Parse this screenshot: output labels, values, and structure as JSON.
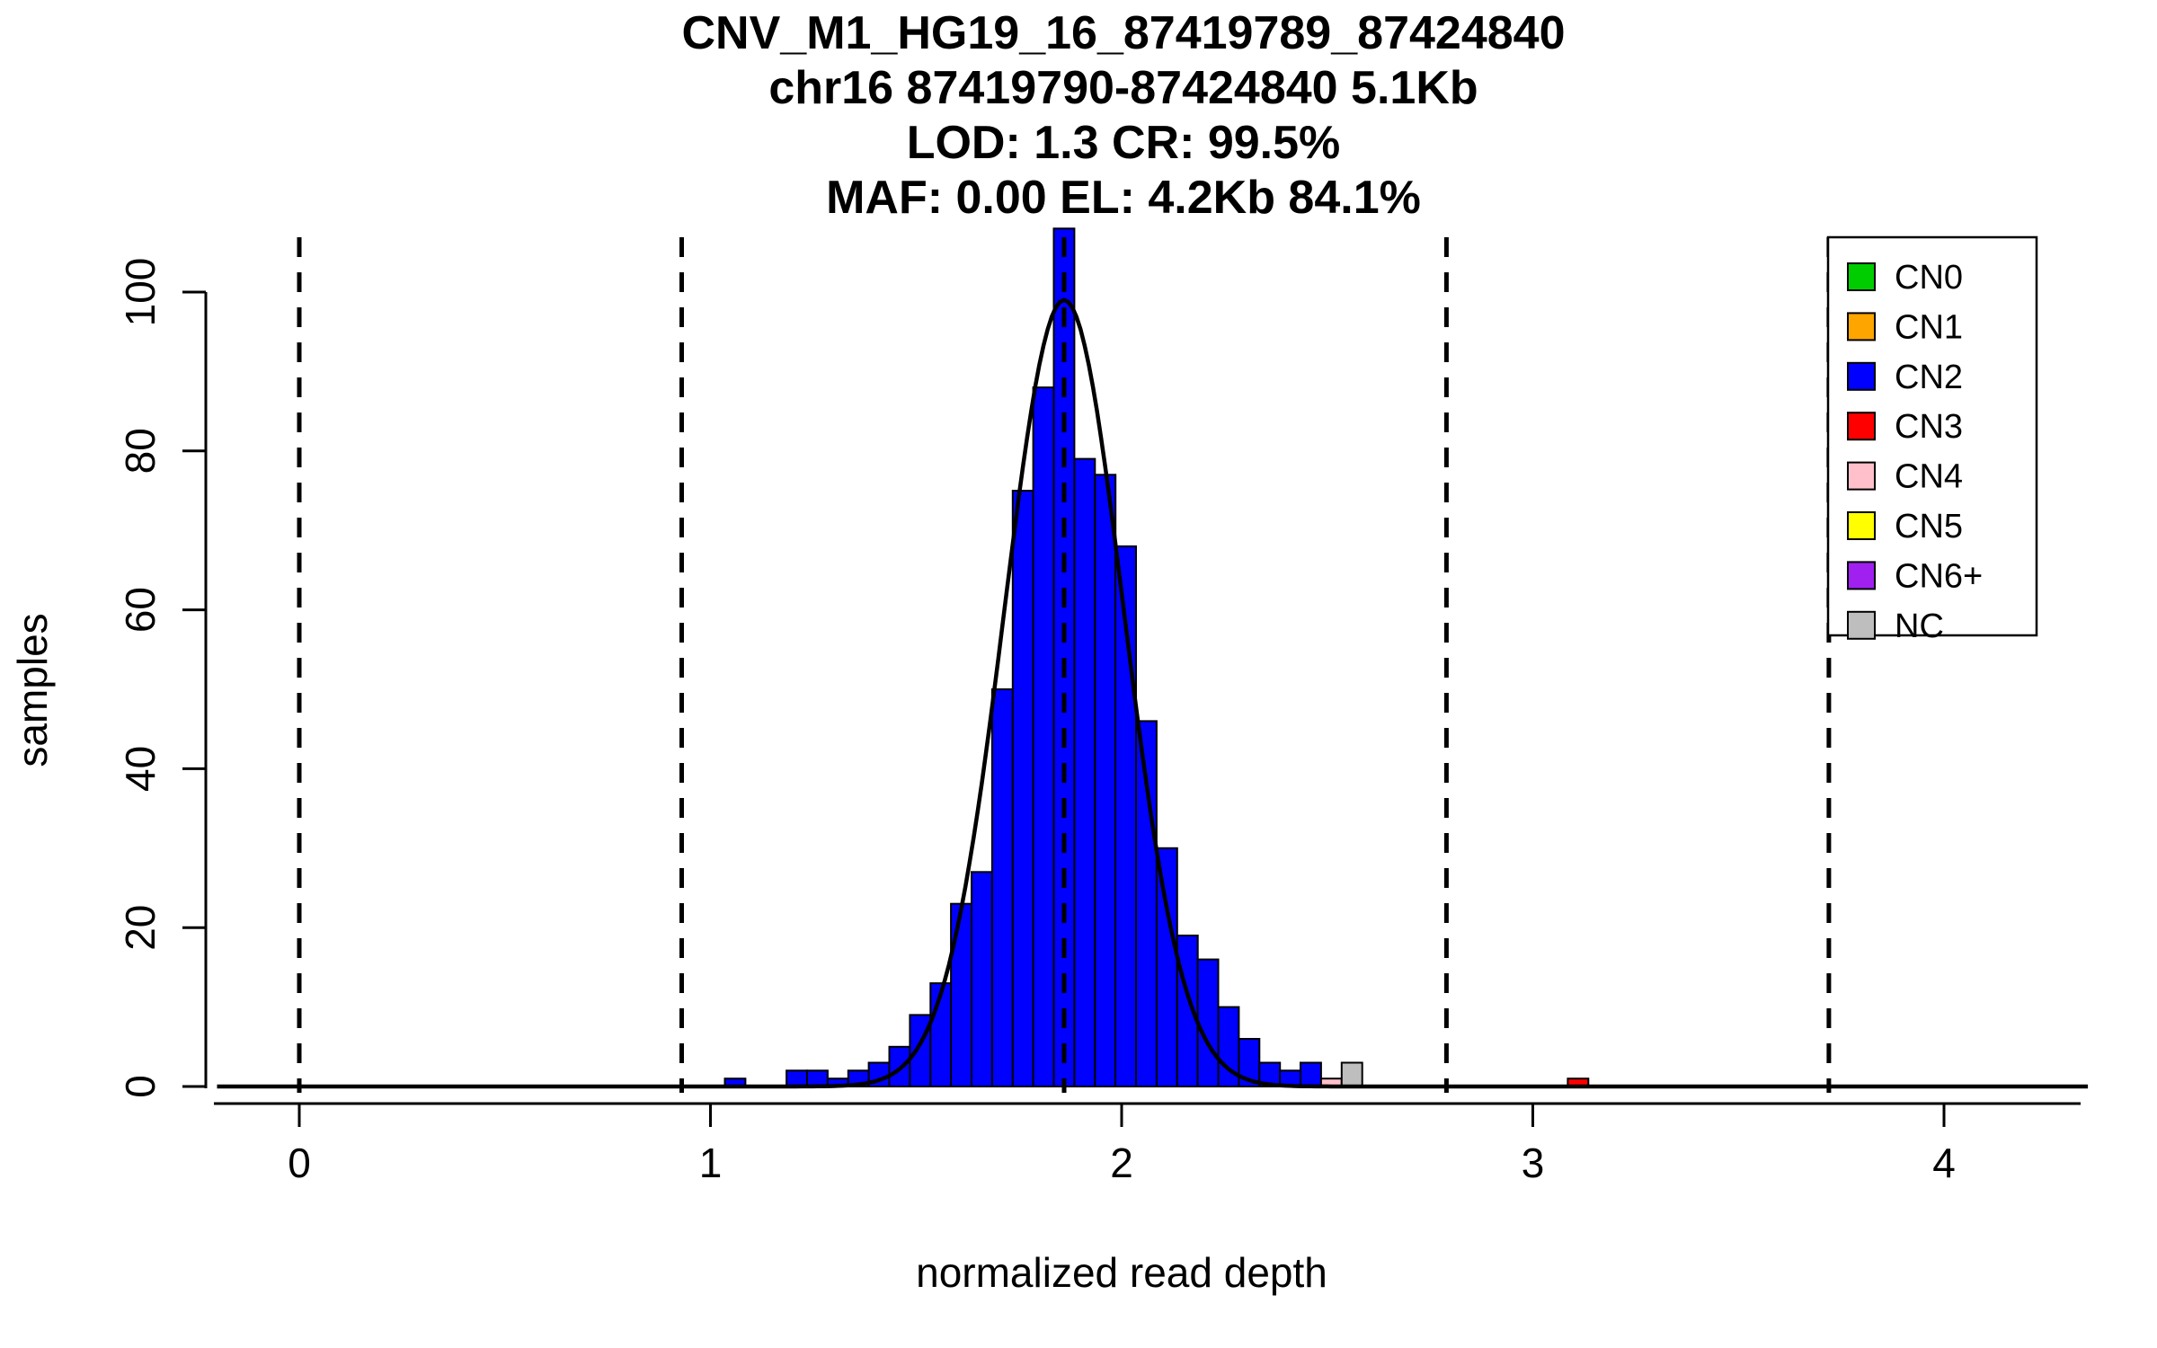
{
  "chart_data": {
    "type": "bar",
    "title_lines": [
      "CNV_M1_HG19_16_87419789_87424840",
      "chr16 87419790-87424840 5.1Kb",
      "LOD: 1.3 CR: 99.5%",
      "MAF: 0.00 EL: 4.2Kb 84.1%"
    ],
    "xlabel": "normalized read depth",
    "ylabel": "samples",
    "x_ticks": [
      0,
      1,
      2,
      3,
      4
    ],
    "y_ticks": [
      0,
      20,
      40,
      60,
      80,
      100
    ],
    "xlim": [
      -0.2,
      4.35
    ],
    "ylim": [
      0,
      108
    ],
    "grid": false,
    "legend_position": "top-right",
    "bin_width": 0.05,
    "bars": [
      {
        "x": 1.035,
        "h": 1,
        "cn": "CN2"
      },
      {
        "x": 1.185,
        "h": 2,
        "cn": "CN2"
      },
      {
        "x": 1.235,
        "h": 2,
        "cn": "CN2"
      },
      {
        "x": 1.285,
        "h": 1,
        "cn": "CN2"
      },
      {
        "x": 1.335,
        "h": 2,
        "cn": "CN2"
      },
      {
        "x": 1.385,
        "h": 3,
        "cn": "CN2"
      },
      {
        "x": 1.435,
        "h": 5,
        "cn": "CN2"
      },
      {
        "x": 1.485,
        "h": 9,
        "cn": "CN2"
      },
      {
        "x": 1.535,
        "h": 13,
        "cn": "CN2"
      },
      {
        "x": 1.585,
        "h": 23,
        "cn": "CN2"
      },
      {
        "x": 1.635,
        "h": 27,
        "cn": "CN2"
      },
      {
        "x": 1.685,
        "h": 50,
        "cn": "CN2"
      },
      {
        "x": 1.735,
        "h": 75,
        "cn": "CN2"
      },
      {
        "x": 1.785,
        "h": 88,
        "cn": "CN2"
      },
      {
        "x": 1.835,
        "h": 108,
        "cn": "CN2"
      },
      {
        "x": 1.885,
        "h": 79,
        "cn": "CN2"
      },
      {
        "x": 1.935,
        "h": 77,
        "cn": "CN2"
      },
      {
        "x": 1.985,
        "h": 68,
        "cn": "CN2"
      },
      {
        "x": 2.035,
        "h": 46,
        "cn": "CN2"
      },
      {
        "x": 2.085,
        "h": 30,
        "cn": "CN2"
      },
      {
        "x": 2.135,
        "h": 19,
        "cn": "CN2"
      },
      {
        "x": 2.185,
        "h": 16,
        "cn": "CN2"
      },
      {
        "x": 2.235,
        "h": 10,
        "cn": "CN2"
      },
      {
        "x": 2.285,
        "h": 6,
        "cn": "CN2"
      },
      {
        "x": 2.335,
        "h": 3,
        "cn": "CN2"
      },
      {
        "x": 2.385,
        "h": 2,
        "cn": "CN2"
      },
      {
        "x": 2.435,
        "h": 3,
        "cn": "CN2"
      },
      {
        "x": 2.485,
        "h": 1,
        "cn": "CN4"
      },
      {
        "x": 2.535,
        "h": 3,
        "cn": "NC"
      },
      {
        "x": 3.085,
        "h": 1,
        "cn": "CN3"
      }
    ],
    "dashed_lines_x": [
      0,
      0.93,
      1.86,
      2.79,
      3.72
    ],
    "curve": {
      "type": "gaussian",
      "mean": 1.86,
      "sd": 0.145,
      "peak": 99
    },
    "legend": [
      {
        "label": "CN0",
        "color": "#00CD00"
      },
      {
        "label": "CN1",
        "color": "#FFA500"
      },
      {
        "label": "CN2",
        "color": "#0000FF"
      },
      {
        "label": "CN3",
        "color": "#FF0000"
      },
      {
        "label": "CN4",
        "color": "#FFC0CB"
      },
      {
        "label": "CN5",
        "color": "#FFFF00"
      },
      {
        "label": "CN6+",
        "color": "#A020F0"
      },
      {
        "label": "NC",
        "color": "#BEBEBE"
      }
    ]
  }
}
